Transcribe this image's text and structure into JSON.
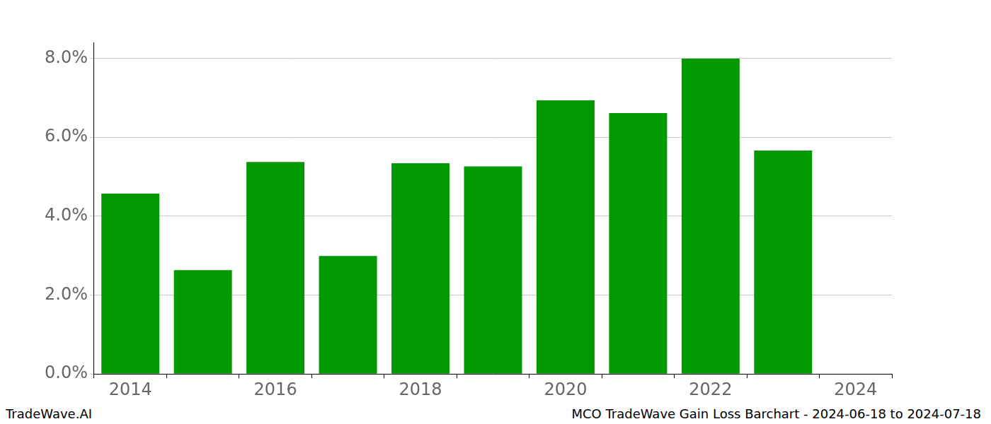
{
  "chart_data": {
    "type": "bar",
    "categories": [
      "2014",
      null,
      "2016",
      null,
      "2018",
      null,
      "2020",
      null,
      "2022",
      null,
      "2024"
    ],
    "values": [
      4.57,
      2.63,
      5.37,
      2.99,
      5.34,
      5.26,
      6.93,
      6.61,
      7.99,
      5.66,
      null
    ],
    "color": "#009900",
    "ylim": [
      0,
      8.4
    ],
    "yticks": [
      {
        "value": 0,
        "label": "0.0%"
      },
      {
        "value": 2,
        "label": "2.0%"
      },
      {
        "value": 4,
        "label": "4.0%"
      },
      {
        "value": 6,
        "label": "6.0%"
      },
      {
        "value": 8,
        "label": "8.0%"
      }
    ],
    "grid": true,
    "annotations": [
      "TradeWave.AI",
      "MCO TradeWave Gain Loss Barchart - 2024-06-18 to 2024-07-18"
    ]
  }
}
